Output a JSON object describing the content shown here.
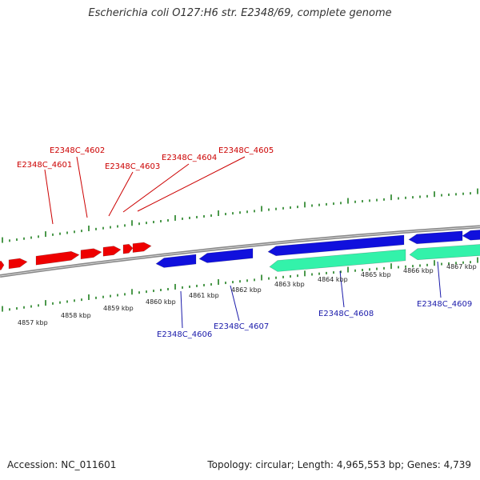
{
  "title": "Escherichia coli O127:H6 str. E2348/69, complete genome",
  "footer": {
    "accession": "Accession: NC_011601",
    "topology": "Topology: circular; Length: 4,965,553 bp; Genes: 4,739"
  },
  "colors": {
    "forward_gene": "#ee0000",
    "reverse_gene": "#1010dd",
    "cds_feature": "#33f2aa",
    "backbone": "#888888",
    "tick": "#117711",
    "forward_label": "#cc0000",
    "reverse_label": "#1a1aaa"
  },
  "kbp_ticks": [
    "4857 kbp",
    "4858 kbp",
    "4859 kbp",
    "4860 kbp",
    "4861 kbp",
    "4862 kbp",
    "4863 kbp",
    "4864 kbp",
    "4865 kbp",
    "4866 kbp",
    "4867 kbp"
  ],
  "forward_labels": [
    "E2348C_4601",
    "E2348C_4602",
    "E2348C_4603",
    "E2348C_4604",
    "E2348C_4605"
  ],
  "reverse_labels": [
    "E2348C_4606",
    "E2348C_4607",
    "E2348C_4608",
    "E2348C_4609"
  ]
}
